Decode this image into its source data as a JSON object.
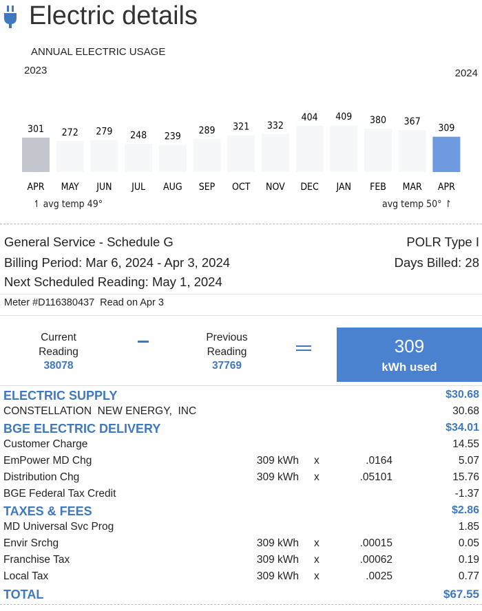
{
  "header": {
    "title": "Electric details"
  },
  "usage": {
    "title": "ANNUAL ELECTRIC USAGE",
    "start_year": "2023",
    "end_year": "2024",
    "months": [
      "APR",
      "MAY",
      "JUN",
      "JUL",
      "AUG",
      "SEP",
      "OCT",
      "NOV",
      "DEC",
      "JAN",
      "FEB",
      "MAR",
      "APR"
    ],
    "values": [
      301,
      272,
      279,
      248,
      239,
      289,
      321,
      332,
      404,
      409,
      380,
      367,
      309
    ],
    "start_temp": "avg temp 49°",
    "end_temp": "avg temp 50°"
  },
  "account": {
    "service": "General Service - Schedule G",
    "rate_type": "POLR Type I",
    "billing_period": "Billing Period: Mar 6, 2024 - Apr 3, 2024",
    "days_billed": "Days Billed: 28",
    "next_reading": "Next Scheduled Reading: May 1, 2024",
    "meter": "Meter #D116380437  Read on Apr 3"
  },
  "meter_reading": {
    "current_label": "Current Reading",
    "current": 38078,
    "previous_label": "Previous Reading",
    "previous": 37769,
    "used": 309,
    "used_unit": "kWh used"
  },
  "sections": [
    {
      "title": "ELECTRIC SUPPLY",
      "total": "$30.68",
      "rows": [
        {
          "label": "CONSTELLATION  NEW ENERGY,  INC",
          "amount": 30.68
        }
      ]
    },
    {
      "title": "BGE ELECTRIC DELIVERY",
      "total": "$34.01",
      "rows": [
        {
          "label": "Customer Charge",
          "amount": 14.55
        },
        {
          "label": "EmPower MD Chg",
          "quantity": "309 kWh",
          "op": "x",
          "rate": ".0164",
          "amount": 5.07
        },
        {
          "label": "Distribution Chg",
          "quantity": "309 kWh",
          "op": "x",
          "rate": ".05101",
          "amount": 15.76
        },
        {
          "label": "BGE Federal Tax Credit",
          "amount": -1.37
        }
      ]
    },
    {
      "title": "TAXES & FEES",
      "total": "$2.86",
      "rows": [
        {
          "label": "MD Universal Svc Prog",
          "amount": 1.85
        },
        {
          "label": "Envir Srchg",
          "quantity": "309 kWh",
          "op": "x",
          "rate": ".00015",
          "amount": 0.05
        },
        {
          "label": "Franchise Tax",
          "quantity": "309 kWh",
          "op": "x",
          "rate": ".00062",
          "amount": 0.19
        },
        {
          "label": "Local Tax",
          "quantity": "309 kWh",
          "op": "x",
          "rate": ".0025",
          "amount": 0.77
        }
      ]
    }
  ],
  "total": {
    "label": "TOTAL",
    "amount": "$67.55"
  }
}
